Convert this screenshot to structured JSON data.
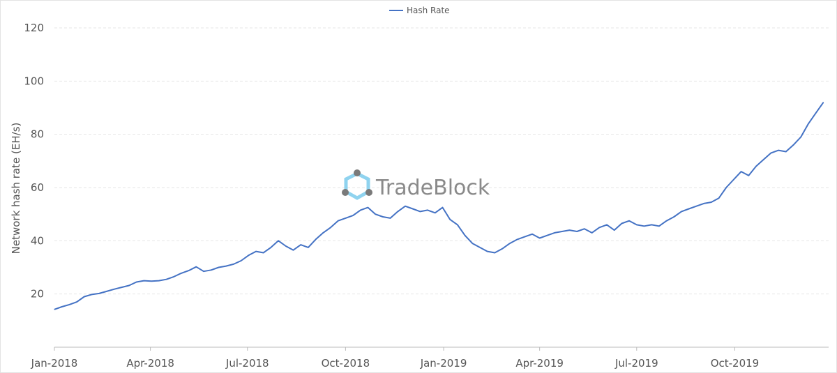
{
  "chart_data": {
    "type": "line",
    "title": "",
    "xlabel": "",
    "ylabel": "Network hash rate (EH/s)",
    "ylim": [
      0,
      120
    ],
    "yticks": [
      20,
      40,
      60,
      80,
      100,
      120
    ],
    "xlim": [
      "2018-01-01",
      "2019-12-28"
    ],
    "xticks": [
      {
        "date": "2018-01-01",
        "label": "Jan-2018"
      },
      {
        "date": "2018-04-01",
        "label": "Apr-2018"
      },
      {
        "date": "2018-07-01",
        "label": "Jul-2018"
      },
      {
        "date": "2018-10-01",
        "label": "Oct-2018"
      },
      {
        "date": "2019-01-01",
        "label": "Jan-2019"
      },
      {
        "date": "2019-04-01",
        "label": "Apr-2019"
      },
      {
        "date": "2019-07-01",
        "label": "Jul-2019"
      },
      {
        "date": "2019-10-01",
        "label": "Oct-2019"
      }
    ],
    "grid": "horizontal-dashed",
    "legend_position": "top-center",
    "series": [
      {
        "name": "Hash Rate",
        "color": "#4472c4",
        "points": [
          [
            "2018-01-01",
            14.2
          ],
          [
            "2018-01-08",
            15.2
          ],
          [
            "2018-01-15",
            16.0
          ],
          [
            "2018-01-22",
            17.0
          ],
          [
            "2018-01-29",
            19.0
          ],
          [
            "2018-02-05",
            19.8
          ],
          [
            "2018-02-12",
            20.2
          ],
          [
            "2018-02-19",
            21.0
          ],
          [
            "2018-02-26",
            21.8
          ],
          [
            "2018-03-05",
            22.5
          ],
          [
            "2018-03-12",
            23.2
          ],
          [
            "2018-03-19",
            24.5
          ],
          [
            "2018-03-26",
            25.0
          ],
          [
            "2018-04-02",
            24.8
          ],
          [
            "2018-04-09",
            25.0
          ],
          [
            "2018-04-16",
            25.5
          ],
          [
            "2018-04-23",
            26.5
          ],
          [
            "2018-04-30",
            27.8
          ],
          [
            "2018-05-07",
            28.8
          ],
          [
            "2018-05-14",
            30.2
          ],
          [
            "2018-05-21",
            28.5
          ],
          [
            "2018-05-28",
            29.0
          ],
          [
            "2018-06-04",
            30.0
          ],
          [
            "2018-06-11",
            30.5
          ],
          [
            "2018-06-18",
            31.2
          ],
          [
            "2018-06-25",
            32.5
          ],
          [
            "2018-07-02",
            34.5
          ],
          [
            "2018-07-09",
            36.0
          ],
          [
            "2018-07-16",
            35.5
          ],
          [
            "2018-07-23",
            37.5
          ],
          [
            "2018-07-30",
            40.0
          ],
          [
            "2018-08-06",
            38.0
          ],
          [
            "2018-08-13",
            36.5
          ],
          [
            "2018-08-20",
            38.5
          ],
          [
            "2018-08-27",
            37.5
          ],
          [
            "2018-09-03",
            40.5
          ],
          [
            "2018-09-10",
            43.0
          ],
          [
            "2018-09-17",
            45.0
          ],
          [
            "2018-09-24",
            47.5
          ],
          [
            "2018-10-01",
            48.5
          ],
          [
            "2018-10-08",
            49.5
          ],
          [
            "2018-10-15",
            51.5
          ],
          [
            "2018-10-22",
            52.5
          ],
          [
            "2018-10-29",
            50.0
          ],
          [
            "2018-11-05",
            49.0
          ],
          [
            "2018-11-12",
            48.5
          ],
          [
            "2018-11-19",
            51.0
          ],
          [
            "2018-11-26",
            53.0
          ],
          [
            "2018-12-03",
            52.0
          ],
          [
            "2018-12-10",
            51.0
          ],
          [
            "2018-12-17",
            51.5
          ],
          [
            "2018-12-24",
            50.5
          ],
          [
            "2018-12-31",
            52.5
          ],
          [
            "2019-01-07",
            48.0
          ],
          [
            "2019-01-14",
            46.0
          ],
          [
            "2019-01-21",
            42.0
          ],
          [
            "2019-01-28",
            39.0
          ],
          [
            "2019-02-04",
            37.5
          ],
          [
            "2019-02-11",
            36.0
          ],
          [
            "2019-02-18",
            35.5
          ],
          [
            "2019-02-25",
            37.0
          ],
          [
            "2019-03-04",
            39.0
          ],
          [
            "2019-03-11",
            40.5
          ],
          [
            "2019-03-18",
            41.5
          ],
          [
            "2019-03-25",
            42.5
          ],
          [
            "2019-04-01",
            41.0
          ],
          [
            "2019-04-08",
            42.0
          ],
          [
            "2019-04-15",
            43.0
          ],
          [
            "2019-04-22",
            43.5
          ],
          [
            "2019-04-29",
            44.0
          ],
          [
            "2019-05-06",
            43.5
          ],
          [
            "2019-05-13",
            44.5
          ],
          [
            "2019-05-20",
            43.0
          ],
          [
            "2019-05-27",
            45.0
          ],
          [
            "2019-06-03",
            46.0
          ],
          [
            "2019-06-10",
            44.0
          ],
          [
            "2019-06-17",
            46.5
          ],
          [
            "2019-06-24",
            47.5
          ],
          [
            "2019-07-01",
            46.0
          ],
          [
            "2019-07-08",
            45.5
          ],
          [
            "2019-07-15",
            46.0
          ],
          [
            "2019-07-22",
            45.5
          ],
          [
            "2019-07-29",
            47.5
          ],
          [
            "2019-08-05",
            49.0
          ],
          [
            "2019-08-12",
            51.0
          ],
          [
            "2019-08-19",
            52.0
          ],
          [
            "2019-08-26",
            53.0
          ],
          [
            "2019-09-02",
            54.0
          ],
          [
            "2019-09-09",
            54.5
          ],
          [
            "2019-09-16",
            56.0
          ],
          [
            "2019-09-23",
            60.0
          ],
          [
            "2019-09-30",
            63.0
          ],
          [
            "2019-10-07",
            66.0
          ],
          [
            "2019-10-14",
            64.5
          ],
          [
            "2019-10-21",
            68.0
          ],
          [
            "2019-10-28",
            70.5
          ],
          [
            "2019-11-04",
            73.0
          ],
          [
            "2019-11-11",
            74.0
          ],
          [
            "2019-11-18",
            73.5
          ],
          [
            "2019-11-25",
            76.0
          ],
          [
            "2019-12-02",
            79.0
          ],
          [
            "2019-12-09",
            84.0
          ],
          [
            "2019-12-16",
            88.0
          ],
          [
            "2019-12-23",
            92.0
          ]
        ]
      }
    ],
    "logo_text": "TradeBlock"
  }
}
